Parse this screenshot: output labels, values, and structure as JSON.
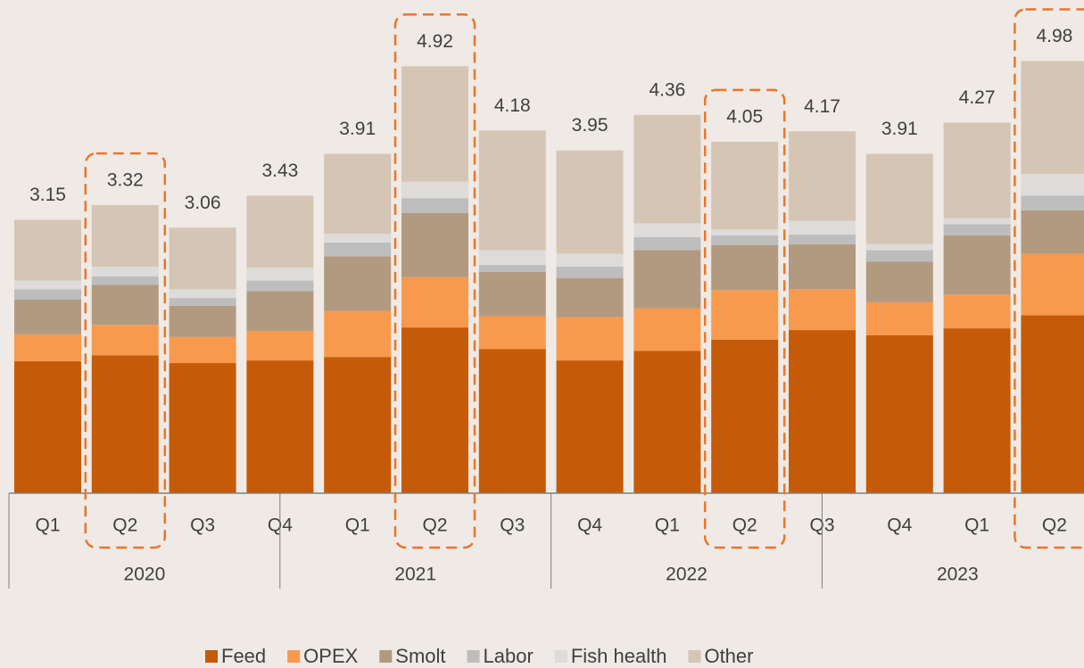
{
  "chart_data": {
    "type": "stacked_bar",
    "categories": [
      "Q1",
      "Q2",
      "Q3",
      "Q4",
      "Q1",
      "Q2",
      "Q3",
      "Q4",
      "Q1",
      "Q2",
      "Q3",
      "Q4",
      "Q1",
      "Q2"
    ],
    "groups": [
      "2020",
      "2021",
      "2022",
      "2023"
    ],
    "totals": [
      3.15,
      3.32,
      3.06,
      3.43,
      3.91,
      4.92,
      4.18,
      3.95,
      4.36,
      4.05,
      4.17,
      3.91,
      4.27,
      4.98
    ],
    "highlight": [
      1,
      5,
      9,
      13
    ],
    "highlight_color": "#e8762c",
    "series": [
      {
        "name": "Feed",
        "color": "#c55a08",
        "values": [
          1.52,
          1.59,
          1.5,
          1.53,
          1.57,
          1.91,
          1.66,
          1.53,
          1.64,
          1.77,
          1.88,
          1.82,
          1.9,
          2.05
        ]
      },
      {
        "name": "OPEX",
        "color": "#f79a4e",
        "values": [
          0.31,
          0.35,
          0.3,
          0.34,
          0.53,
          0.58,
          0.38,
          0.5,
          0.49,
          0.57,
          0.47,
          0.38,
          0.39,
          0.71
        ]
      },
      {
        "name": "Smolt",
        "color": "#b29a80",
        "values": [
          0.4,
          0.46,
          0.36,
          0.46,
          0.63,
          0.74,
          0.51,
          0.45,
          0.67,
          0.52,
          0.52,
          0.47,
          0.68,
          0.5
        ]
      },
      {
        "name": "Labor",
        "color": "#bdbdbd",
        "values": [
          0.12,
          0.1,
          0.09,
          0.12,
          0.16,
          0.17,
          0.08,
          0.13,
          0.15,
          0.11,
          0.11,
          0.13,
          0.13,
          0.17
        ]
      },
      {
        "name": "Fish health",
        "color": "#dddcda",
        "values": [
          0.1,
          0.11,
          0.1,
          0.15,
          0.1,
          0.19,
          0.17,
          0.15,
          0.16,
          0.07,
          0.16,
          0.07,
          0.07,
          0.25
        ]
      },
      {
        "name": "Other",
        "color": "#d5c5b4",
        "values": [
          0.7,
          0.71,
          0.71,
          0.83,
          0.92,
          1.33,
          1.38,
          1.19,
          1.25,
          1.01,
          1.03,
          1.04,
          1.1,
          1.3
        ]
      }
    ]
  }
}
